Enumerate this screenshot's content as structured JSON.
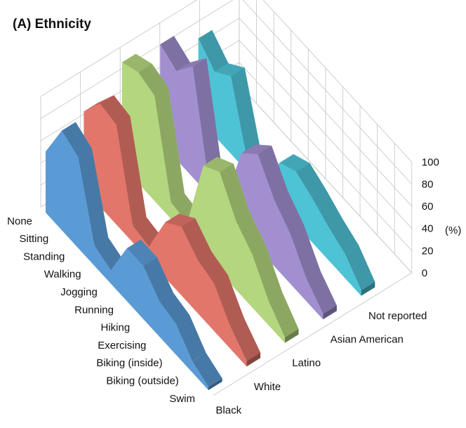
{
  "chart_data": {
    "type": "3d-ribbon",
    "title": "(A) Ethnicity",
    "unit": "(%)",
    "zlim": [
      0,
      100
    ],
    "z_ticks": [
      "0",
      "20",
      "40",
      "60",
      "80",
      "100"
    ],
    "categories": [
      "None",
      "Sitting",
      "Standing",
      "Walking",
      "Jogging",
      "Running",
      "Hiking",
      "Exercising",
      "Biking (inside)",
      "Biking (outside)",
      "Swim"
    ],
    "series": [
      {
        "name": "Black",
        "color": "#5b9bd5",
        "values": [
          55,
          90,
          82,
          18,
          12,
          48,
          48,
          32,
          28,
          10,
          3
        ]
      },
      {
        "name": "White",
        "color": "#e2766b",
        "values": [
          70,
          93,
          90,
          15,
          12,
          50,
          62,
          48,
          43,
          20,
          5
        ]
      },
      {
        "name": "Latino",
        "color": "#b4d67e",
        "values": [
          93,
          100,
          95,
          15,
          12,
          80,
          90,
          62,
          48,
          22,
          5
        ]
      },
      {
        "name": "Asian American",
        "color": "#a28fd0",
        "values": [
          88,
          80,
          100,
          10,
          12,
          70,
          85,
          60,
          45,
          20,
          5
        ]
      },
      {
        "name": "Not reported",
        "color": "#4fc3d6",
        "values": [
          72,
          58,
          70,
          10,
          5,
          40,
          48,
          40,
          30,
          22,
          5
        ]
      }
    ]
  }
}
